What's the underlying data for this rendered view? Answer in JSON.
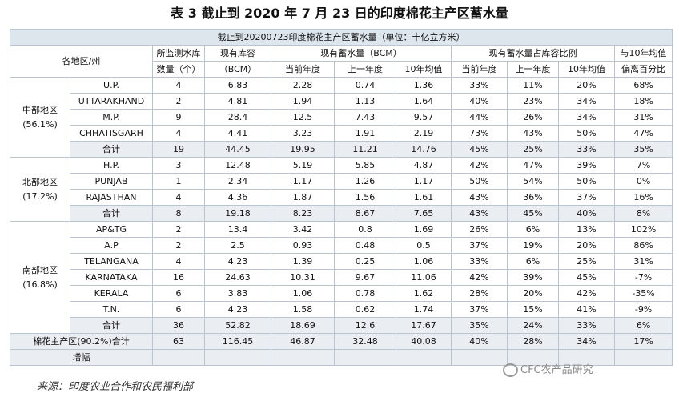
{
  "title": "表 3  截止到 2020 年 7 月 23 日的印度棉花主产区蓄水量",
  "band": "截止到20200723印度棉花主产区蓄水量（单位：十亿立方米）",
  "headers": {
    "region_state": "各地区/州",
    "monitored_l1": "所监测水库",
    "monitored_l2": "数量（个）",
    "capacity_l1": "现有库容",
    "capacity_l2": "（BCM）",
    "storage_group": "现有蓄水量（BCM）",
    "storage_sub": [
      "当前年度",
      "上一年度",
      "10年均值"
    ],
    "ratio_group": "现有蓄水量占库容比例",
    "ratio_sub": [
      "当前年度",
      "上一年度",
      "10年均值"
    ],
    "dev_l1": "与10年均值",
    "dev_l2": "偏离百分比"
  },
  "regions": [
    {
      "name": "中部地区",
      "share": "(56.1%)",
      "rows": [
        [
          "U.P.",
          "4",
          "6.83",
          "2.28",
          "0.74",
          "1.36",
          "33%",
          "11%",
          "20%",
          "68%"
        ],
        [
          "UTTARAKHAND",
          "2",
          "4.81",
          "1.94",
          "1.13",
          "1.64",
          "40%",
          "23%",
          "34%",
          "18%"
        ],
        [
          "M.P.",
          "9",
          "28.4",
          "12.5",
          "7.43",
          "9.57",
          "44%",
          "26%",
          "34%",
          "31%"
        ],
        [
          "CHHATISGARH",
          "4",
          "4.41",
          "3.23",
          "1.91",
          "2.19",
          "73%",
          "43%",
          "50%",
          "47%"
        ]
      ],
      "total": [
        "合计",
        "19",
        "44.45",
        "19.95",
        "11.21",
        "14.76",
        "45%",
        "25%",
        "33%",
        "35%"
      ]
    },
    {
      "name": "北部地区",
      "share": "(17.2%)",
      "rows": [
        [
          "H.P.",
          "3",
          "12.48",
          "5.19",
          "5.85",
          "4.87",
          "42%",
          "47%",
          "39%",
          "7%"
        ],
        [
          "PUNJAB",
          "1",
          "2.34",
          "1.17",
          "1.26",
          "1.17",
          "50%",
          "54%",
          "50%",
          "0%"
        ],
        [
          "RAJASTHAN",
          "4",
          "4.36",
          "1.87",
          "1.56",
          "1.61",
          "43%",
          "36%",
          "37%",
          "16%"
        ]
      ],
      "total": [
        "合计",
        "8",
        "19.18",
        "8.23",
        "8.67",
        "7.65",
        "43%",
        "45%",
        "40%",
        "8%"
      ]
    },
    {
      "name": "南部地区",
      "share": "(16.8%)",
      "rows": [
        [
          "AP&TG",
          "2",
          "13.4",
          "3.42",
          "0.8",
          "1.69",
          "26%",
          "6%",
          "13%",
          "102%"
        ],
        [
          "A.P",
          "2",
          "2.5",
          "0.93",
          "0.48",
          "0.5",
          "37%",
          "19%",
          "20%",
          "86%"
        ],
        [
          "TELANGANA",
          "4",
          "4.23",
          "1.39",
          "0.25",
          "1.06",
          "33%",
          "6%",
          "25%",
          "31%"
        ],
        [
          "KARNATAKA",
          "16",
          "24.63",
          "10.31",
          "9.67",
          "11.06",
          "42%",
          "39%",
          "45%",
          "-7%"
        ],
        [
          "KERALA",
          "6",
          "3.83",
          "1.06",
          "0.78",
          "1.62",
          "28%",
          "20%",
          "42%",
          "-35%"
        ],
        [
          "T.N.",
          "6",
          "4.23",
          "1.58",
          "0.62",
          "1.74",
          "37%",
          "15%",
          "41%",
          "-9%"
        ]
      ],
      "total": [
        "合计",
        "36",
        "52.82",
        "18.69",
        "12.6",
        "17.67",
        "35%",
        "24%",
        "33%",
        "6%"
      ]
    }
  ],
  "grand_total": [
    "棉花主产区(90.2%)合计",
    "63",
    "116.45",
    "46.87",
    "32.48",
    "40.08",
    "40%",
    "28%",
    "34%",
    "17%"
  ],
  "increase": {
    "label": "增幅",
    "values": [
      "",
      "",
      "",
      "",
      "",
      "",
      "",
      "",
      ""
    ]
  },
  "source": "来源：印度农业合作和农民福利部",
  "watermark": "CFC农产品研究"
}
